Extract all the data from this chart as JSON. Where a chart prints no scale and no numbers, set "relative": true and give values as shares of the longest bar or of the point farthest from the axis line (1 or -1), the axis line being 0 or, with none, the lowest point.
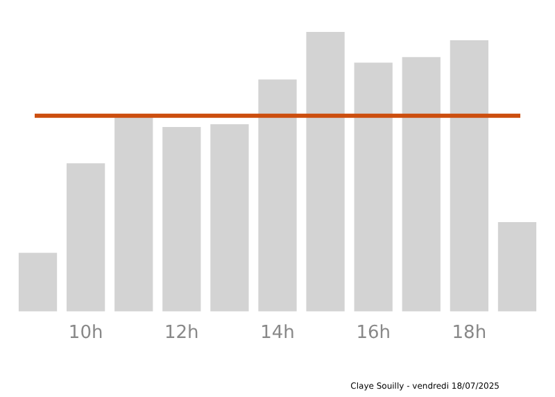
{
  "chart_data": {
    "type": "bar",
    "relative": true,
    "categories": [
      null,
      "10h",
      null,
      "12h",
      null,
      "14h",
      null,
      "16h",
      null,
      "18h",
      null
    ],
    "values": [
      0.21,
      0.53,
      0.7,
      0.66,
      0.67,
      0.83,
      1,
      0.89,
      0.91,
      0.97,
      0.32
    ],
    "color": "#d3d3d3",
    "ref_lines": [
      {
        "axis": "y",
        "value": 0.7,
        "color": "#cc4e0e"
      }
    ],
    "annotations": [
      "Claye Souilly - vendredi 18/07/2025"
    ],
    "grid": false,
    "legend": false
  }
}
